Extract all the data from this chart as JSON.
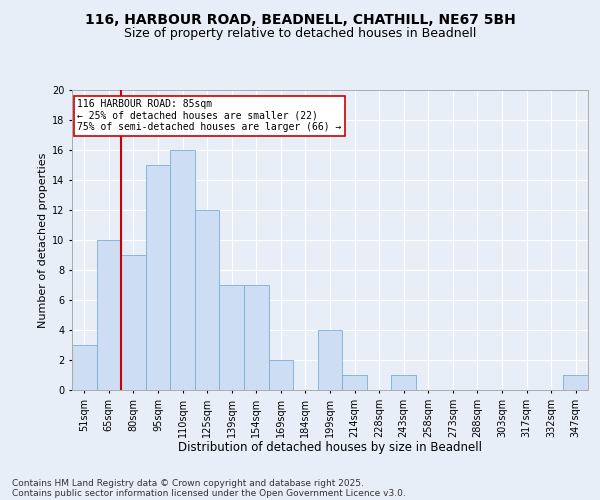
{
  "title_line1": "116, HARBOUR ROAD, BEADNELL, CHATHILL, NE67 5BH",
  "title_line2": "Size of property relative to detached houses in Beadnell",
  "xlabel": "Distribution of detached houses by size in Beadnell",
  "ylabel": "Number of detached properties",
  "categories": [
    "51sqm",
    "65sqm",
    "80sqm",
    "95sqm",
    "110sqm",
    "125sqm",
    "139sqm",
    "154sqm",
    "169sqm",
    "184sqm",
    "199sqm",
    "214sqm",
    "228sqm",
    "243sqm",
    "258sqm",
    "273sqm",
    "288sqm",
    "303sqm",
    "317sqm",
    "332sqm",
    "347sqm"
  ],
  "values": [
    3,
    10,
    9,
    15,
    16,
    12,
    7,
    7,
    2,
    0,
    4,
    1,
    0,
    1,
    0,
    0,
    0,
    0,
    0,
    0,
    1
  ],
  "bar_color": "#ccddf4",
  "bar_edge_color": "#7aaed6",
  "vline_x": 1.5,
  "vline_color": "#cc0000",
  "annotation_text": "116 HARBOUR ROAD: 85sqm\n← 25% of detached houses are smaller (22)\n75% of semi-detached houses are larger (66) →",
  "annotation_box_color": "#ffffff",
  "annotation_box_edge": "#cc0000",
  "ylim": [
    0,
    20
  ],
  "yticks": [
    0,
    2,
    4,
    6,
    8,
    10,
    12,
    14,
    16,
    18,
    20
  ],
  "background_color": "#e8eef8",
  "plot_bg_color": "#e8eef8",
  "grid_color": "#ffffff",
  "footer_line1": "Contains HM Land Registry data © Crown copyright and database right 2025.",
  "footer_line2": "Contains public sector information licensed under the Open Government Licence v3.0.",
  "title_fontsize": 10,
  "subtitle_fontsize": 9,
  "tick_fontsize": 7,
  "annot_fontsize": 7,
  "xlabel_fontsize": 8.5,
  "ylabel_fontsize": 8,
  "footer_fontsize": 6.5
}
